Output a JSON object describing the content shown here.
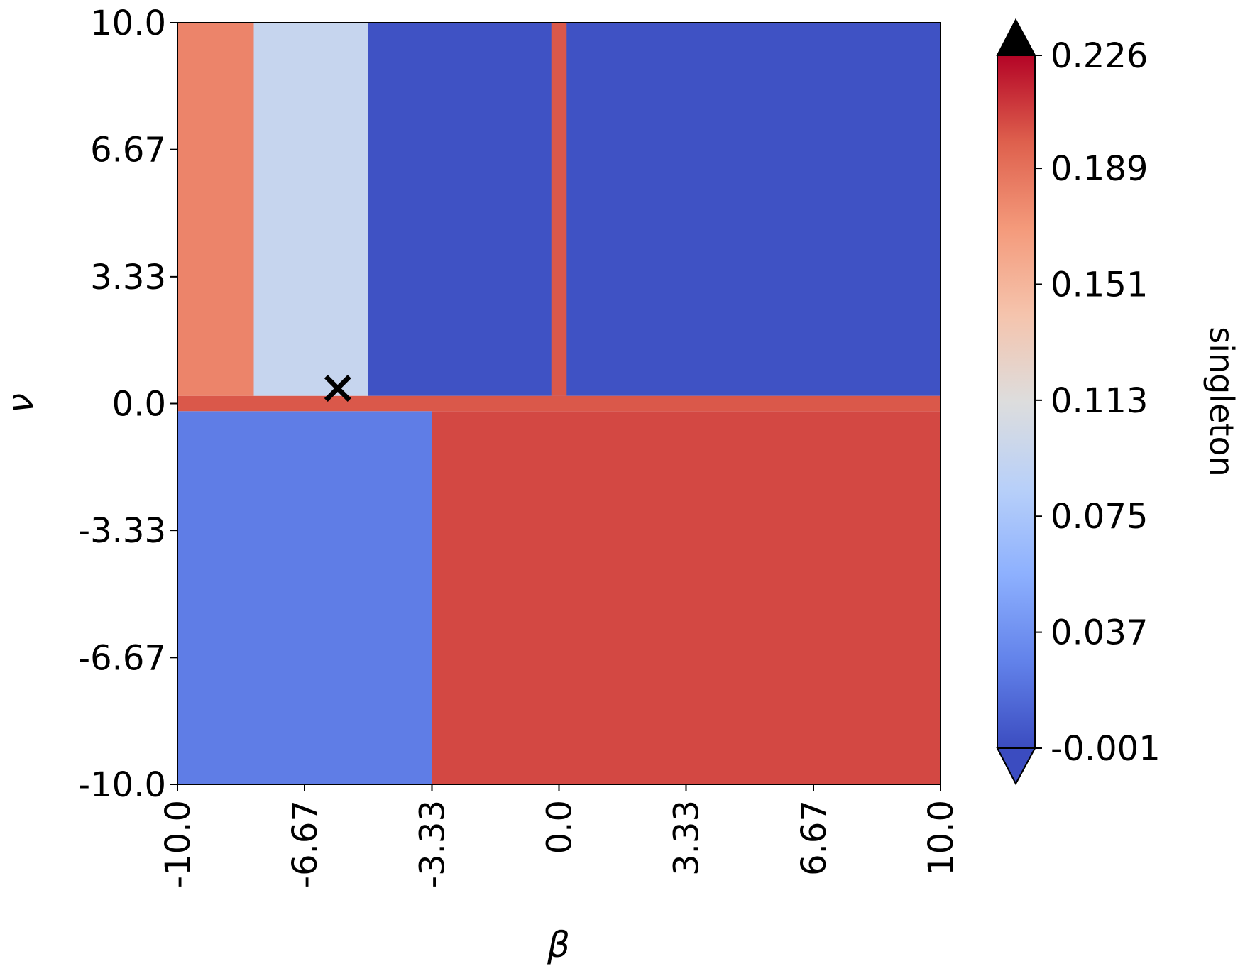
{
  "chart_data": {
    "type": "heatmap",
    "title": "",
    "xlabel": "β",
    "ylabel": "ν",
    "xlim": [
      -10.0,
      10.0
    ],
    "ylim": [
      -10.0,
      10.0
    ],
    "x_ticks": [
      "-10.0",
      "-6.67",
      "-3.33",
      "0.0",
      "3.33",
      "6.67",
      "10.0"
    ],
    "y_ticks": [
      "10.0",
      "6.67",
      "3.33",
      "0.0",
      "-3.33",
      "-6.67",
      "-10.0"
    ],
    "x_tick_values": [
      -10.0,
      -6.67,
      -3.33,
      0.0,
      3.33,
      6.67,
      10.0
    ],
    "y_tick_values": [
      10.0,
      6.67,
      3.33,
      0.0,
      -3.33,
      -6.67,
      -10.0
    ],
    "colorbar": {
      "label": "singleton",
      "colormap": "coolwarm",
      "vmin": -0.001,
      "vmax": 0.226,
      "extend": "both",
      "over_color": "#000000",
      "ticks": [
        "0.226",
        "0.189",
        "0.151",
        "0.113",
        "0.075",
        "0.037",
        "-0.001"
      ],
      "tick_values": [
        0.226,
        0.189,
        0.151,
        0.113,
        0.075,
        0.037,
        -0.001
      ]
    },
    "grid": false,
    "marker": {
      "symbol": "x",
      "x": -5.8,
      "y": 0.4,
      "color": "#000000"
    },
    "regions": [
      {
        "name": "upper-left-red",
        "x": [
          -10.0,
          -8.0
        ],
        "y": [
          0.2,
          10.0
        ],
        "value": 0.18
      },
      {
        "name": "upper-left-white-blue",
        "x": [
          -8.0,
          -5.0
        ],
        "y": [
          0.2,
          10.0
        ],
        "value": 0.095
      },
      {
        "name": "upper-right-blue",
        "x": [
          -5.0,
          10.0
        ],
        "y": [
          0.2,
          10.0
        ],
        "value": 0.002
      },
      {
        "name": "lower-left-blue",
        "x": [
          -10.0,
          -3.33
        ],
        "y": [
          -10.0,
          -0.2
        ],
        "value": 0.025
      },
      {
        "name": "lower-right-red",
        "x": [
          -3.33,
          10.0
        ],
        "y": [
          -10.0,
          -0.2
        ],
        "value": 0.205
      },
      {
        "name": "row-nu-zero",
        "x": [
          -10.0,
          10.0
        ],
        "y": [
          -0.2,
          0.2
        ],
        "value": 0.2
      },
      {
        "name": "column-beta-zero",
        "x": [
          -0.2,
          0.2
        ],
        "y": [
          0.2,
          10.0
        ],
        "value": 0.2
      }
    ]
  }
}
